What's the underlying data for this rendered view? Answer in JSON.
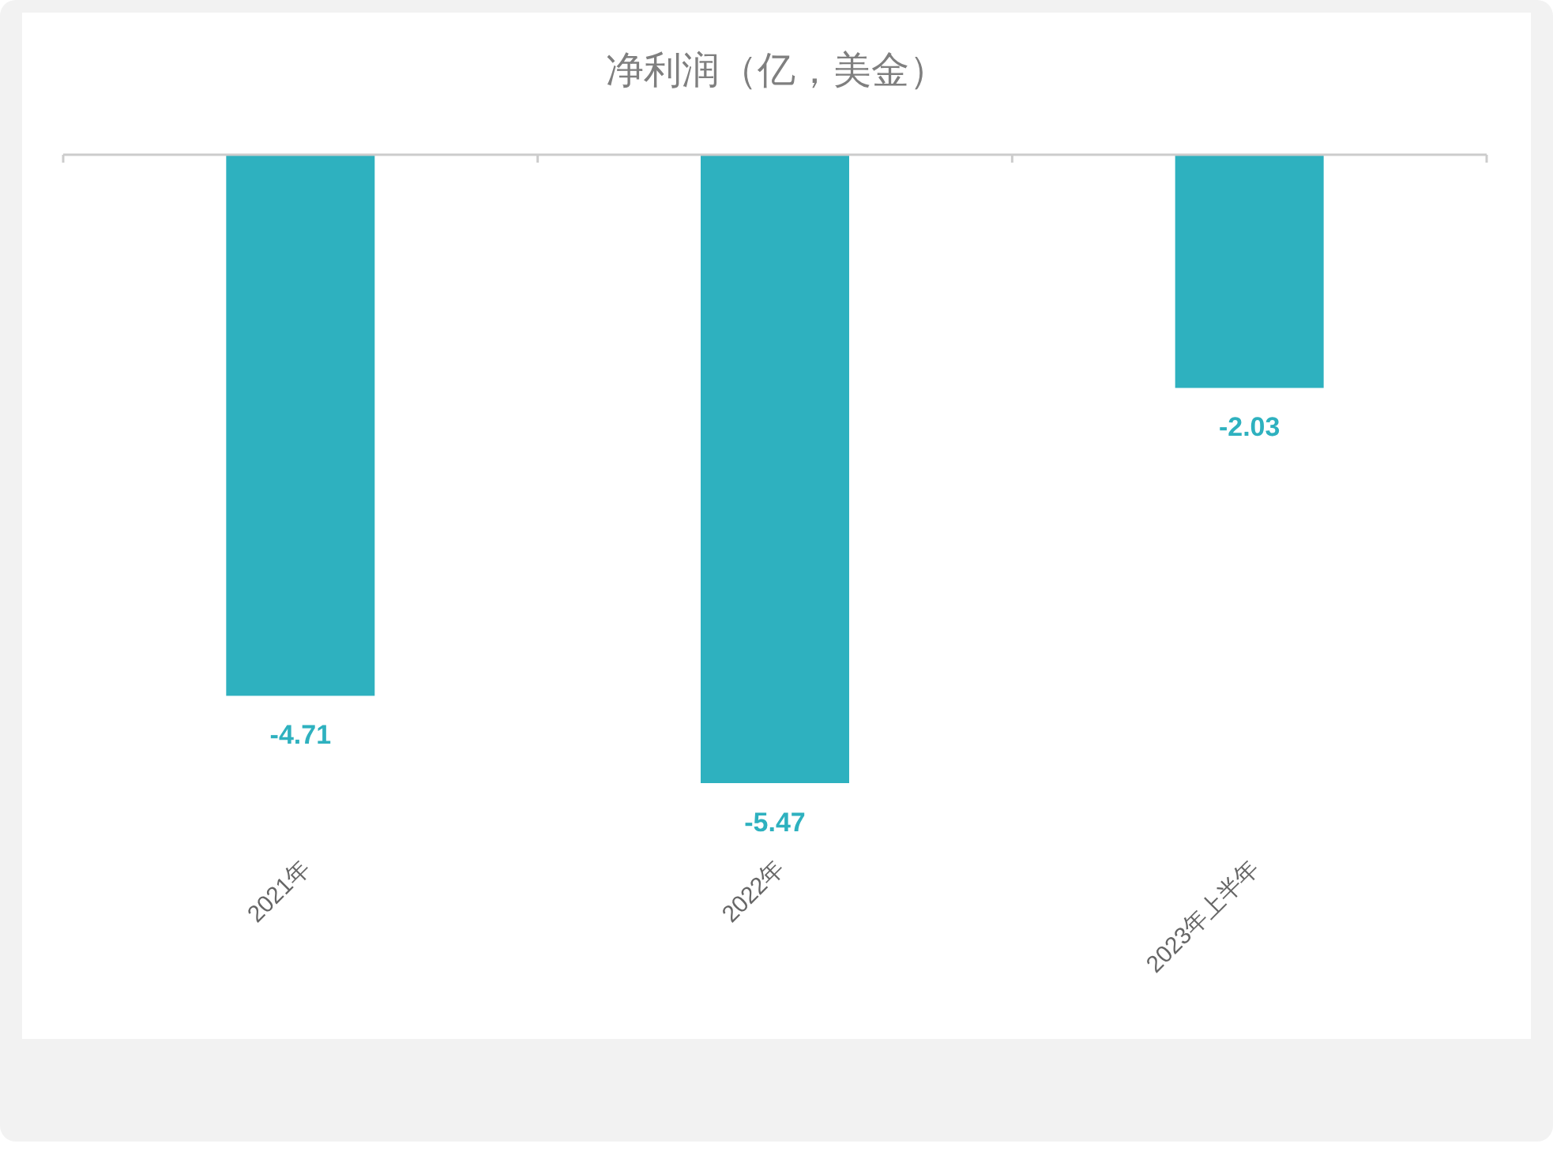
{
  "chart_data": {
    "type": "bar",
    "title": "净利润（亿，美金）",
    "categories": [
      "2021年",
      "2022年",
      "2023年上半年"
    ],
    "values": [
      -4.71,
      -5.47,
      -2.03
    ],
    "color": "#2eb1bf",
    "data_labels": true
  }
}
